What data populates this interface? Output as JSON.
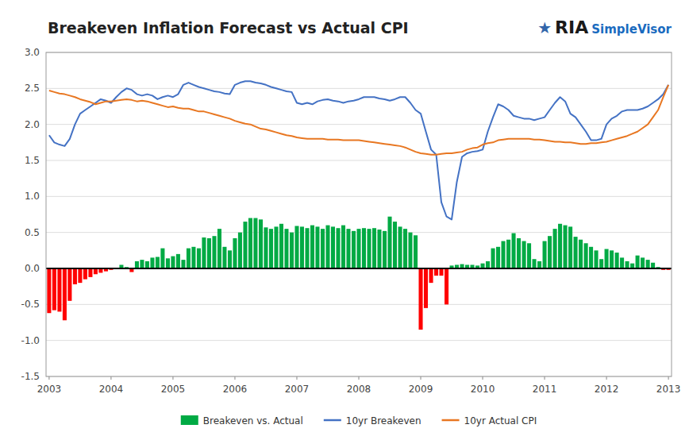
{
  "chart_data": {
    "type": "bar",
    "title": "Breakeven Inflation Forecast vs Actual CPI",
    "annotations": [
      {
        "text": "★",
        "color": "#3366aa"
      },
      {
        "text": "RIA",
        "color": "#1a1a1a"
      },
      {
        "text": "SimpleVisor",
        "color": "#1a6bbf"
      }
    ],
    "x": [
      2003.0,
      2003.083,
      2003.167,
      2003.25,
      2003.333,
      2003.417,
      2003.5,
      2003.583,
      2003.667,
      2003.75,
      2003.833,
      2003.917,
      2004.0,
      2004.083,
      2004.167,
      2004.25,
      2004.333,
      2004.417,
      2004.5,
      2004.583,
      2004.667,
      2004.75,
      2004.833,
      2004.917,
      2005.0,
      2005.083,
      2005.167,
      2005.25,
      2005.333,
      2005.417,
      2005.5,
      2005.583,
      2005.667,
      2005.75,
      2005.833,
      2005.917,
      2006.0,
      2006.083,
      2006.167,
      2006.25,
      2006.333,
      2006.417,
      2006.5,
      2006.583,
      2006.667,
      2006.75,
      2006.833,
      2006.917,
      2007.0,
      2007.083,
      2007.167,
      2007.25,
      2007.333,
      2007.417,
      2007.5,
      2007.583,
      2007.667,
      2007.75,
      2007.833,
      2007.917,
      2008.0,
      2008.083,
      2008.167,
      2008.25,
      2008.333,
      2008.417,
      2008.5,
      2008.583,
      2008.667,
      2008.75,
      2008.833,
      2008.917,
      2009.0,
      2009.083,
      2009.167,
      2009.25,
      2009.333,
      2009.417,
      2009.5,
      2009.583,
      2009.667,
      2009.75,
      2009.833,
      2009.917,
      2010.0,
      2010.083,
      2010.167,
      2010.25,
      2010.333,
      2010.417,
      2010.5,
      2010.583,
      2010.667,
      2010.75,
      2010.833,
      2010.917,
      2011.0,
      2011.083,
      2011.167,
      2011.25,
      2011.333,
      2011.417,
      2011.5,
      2011.583,
      2011.667,
      2011.75,
      2011.833,
      2011.917,
      2012.0,
      2012.083,
      2012.167,
      2012.25,
      2012.333,
      2012.417,
      2012.5,
      2012.583,
      2012.667,
      2012.75,
      2012.833,
      2012.917,
      2013.0
    ],
    "series": [
      {
        "name": "Breakeven vs. Actual",
        "type": "bar",
        "color": "#00AA44",
        "colors": [
          "#FF0000",
          "#FF0000",
          "#FF0000",
          "#FF0000",
          "#FF0000",
          "#FF0000",
          "#FF0000",
          "#FF0000",
          "#FF0000",
          "#FF0000",
          "#FF0000",
          "#FF0000",
          "#FF0000",
          "#00AA44",
          "#00AA44",
          "#00AA44",
          "#FF0000",
          "#00AA44",
          "#00AA44",
          "#00AA44",
          "#00AA44",
          "#00AA44",
          "#00AA44",
          "#00AA44",
          "#00AA44",
          "#00AA44",
          "#00AA44",
          "#00AA44",
          "#00AA44",
          "#00AA44",
          "#00AA44",
          "#00AA44",
          "#00AA44",
          "#00AA44",
          "#00AA44",
          "#00AA44",
          "#00AA44",
          "#00AA44",
          "#00AA44",
          "#00AA44",
          "#00AA44",
          "#00AA44",
          "#00AA44",
          "#00AA44",
          "#00AA44",
          "#00AA44",
          "#00AA44",
          "#00AA44",
          "#00AA44",
          "#00AA44",
          "#00AA44",
          "#00AA44",
          "#00AA44",
          "#00AA44",
          "#00AA44",
          "#00AA44",
          "#00AA44",
          "#00AA44",
          "#00AA44",
          "#00AA44",
          "#00AA44",
          "#00AA44",
          "#00AA44",
          "#00AA44",
          "#00AA44",
          "#00AA44",
          "#00AA44",
          "#00AA44",
          "#00AA44",
          "#00AA44",
          "#00AA44",
          "#00AA44",
          "#FF0000",
          "#FF0000",
          "#FF0000",
          "#FF0000",
          "#FF0000",
          "#FF0000",
          "#00AA44",
          "#00AA44",
          "#00AA44",
          "#00AA44",
          "#00AA44",
          "#00AA44",
          "#00AA44",
          "#00AA44",
          "#00AA44",
          "#00AA44",
          "#00AA44",
          "#00AA44",
          "#00AA44",
          "#00AA44",
          "#00AA44",
          "#00AA44",
          "#00AA44",
          "#00AA44",
          "#00AA44",
          "#00AA44",
          "#00AA44",
          "#00AA44",
          "#00AA44",
          "#00AA44",
          "#00AA44",
          "#00AA44",
          "#00AA44",
          "#00AA44",
          "#00AA44",
          "#00AA44",
          "#00AA44",
          "#00AA44",
          "#00AA44",
          "#00AA44",
          "#00AA44",
          "#00AA44",
          "#00AA44",
          "#00AA44",
          "#00AA44",
          "#00AA44",
          "#00AA44",
          "#FF0000",
          "#FF0000"
        ],
        "values": [
          -0.62,
          -0.58,
          -0.6,
          -0.72,
          -0.45,
          -0.22,
          -0.2,
          -0.15,
          -0.12,
          -0.08,
          -0.06,
          -0.04,
          -0.02,
          0.0,
          0.05,
          0.02,
          -0.05,
          0.1,
          0.12,
          0.1,
          0.15,
          0.16,
          0.28,
          0.14,
          0.17,
          0.2,
          0.12,
          0.28,
          0.3,
          0.28,
          0.43,
          0.42,
          0.45,
          0.55,
          0.3,
          0.25,
          0.42,
          0.5,
          0.65,
          0.7,
          0.7,
          0.68,
          0.57,
          0.55,
          0.58,
          0.62,
          0.55,
          0.5,
          0.59,
          0.58,
          0.56,
          0.6,
          0.58,
          0.55,
          0.6,
          0.58,
          0.56,
          0.6,
          0.55,
          0.52,
          0.55,
          0.56,
          0.55,
          0.56,
          0.54,
          0.52,
          0.72,
          0.65,
          0.58,
          0.55,
          0.5,
          0.46,
          -0.85,
          -0.55,
          -0.2,
          -0.1,
          -0.1,
          -0.5,
          0.04,
          0.05,
          0.06,
          0.05,
          0.05,
          0.04,
          0.07,
          0.1,
          0.28,
          0.3,
          0.38,
          0.4,
          0.49,
          0.42,
          0.38,
          0.35,
          0.13,
          0.1,
          0.38,
          0.45,
          0.55,
          0.62,
          0.6,
          0.58,
          0.44,
          0.4,
          0.35,
          0.3,
          0.25,
          0.13,
          0.27,
          0.25,
          0.22,
          0.15,
          0.1,
          0.07,
          0.18,
          0.15,
          0.12,
          0.08,
          0.02,
          -0.02,
          -0.02
        ]
      },
      {
        "name": "10yr Breakeven",
        "type": "line",
        "color": "#4472C4",
        "values": [
          1.85,
          1.75,
          1.72,
          1.7,
          1.8,
          2.0,
          2.15,
          2.2,
          2.25,
          2.3,
          2.35,
          2.33,
          2.3,
          2.38,
          2.45,
          2.5,
          2.48,
          2.42,
          2.4,
          2.42,
          2.4,
          2.35,
          2.38,
          2.4,
          2.38,
          2.42,
          2.55,
          2.58,
          2.55,
          2.52,
          2.5,
          2.48,
          2.46,
          2.45,
          2.43,
          2.42,
          2.55,
          2.58,
          2.6,
          2.6,
          2.58,
          2.57,
          2.55,
          2.52,
          2.5,
          2.48,
          2.46,
          2.45,
          2.3,
          2.28,
          2.3,
          2.28,
          2.32,
          2.34,
          2.35,
          2.33,
          2.32,
          2.3,
          2.32,
          2.33,
          2.35,
          2.38,
          2.38,
          2.38,
          2.36,
          2.35,
          2.33,
          2.35,
          2.38,
          2.38,
          2.3,
          2.2,
          2.15,
          1.9,
          1.65,
          1.58,
          0.92,
          0.72,
          0.68,
          1.2,
          1.55,
          1.6,
          1.62,
          1.63,
          1.65,
          1.9,
          2.1,
          2.28,
          2.25,
          2.2,
          2.12,
          2.1,
          2.08,
          2.08,
          2.06,
          2.08,
          2.1,
          2.2,
          2.3,
          2.38,
          2.32,
          2.15,
          2.1,
          2.0,
          1.9,
          1.78,
          1.78,
          1.8,
          2.0,
          2.08,
          2.12,
          2.18,
          2.2,
          2.2,
          2.2,
          2.22,
          2.25,
          2.3,
          2.35,
          2.42,
          2.55
        ]
      },
      {
        "name": "10yr Actual CPI",
        "type": "line",
        "color": "#E87722",
        "values": [
          2.47,
          2.45,
          2.43,
          2.42,
          2.4,
          2.38,
          2.35,
          2.33,
          2.31,
          2.28,
          2.3,
          2.32,
          2.32,
          2.33,
          2.34,
          2.35,
          2.34,
          2.32,
          2.33,
          2.32,
          2.3,
          2.28,
          2.26,
          2.24,
          2.25,
          2.23,
          2.22,
          2.22,
          2.2,
          2.18,
          2.18,
          2.16,
          2.14,
          2.12,
          2.1,
          2.08,
          2.05,
          2.03,
          2.01,
          2.0,
          1.97,
          1.94,
          1.93,
          1.91,
          1.89,
          1.87,
          1.85,
          1.84,
          1.82,
          1.81,
          1.8,
          1.8,
          1.8,
          1.8,
          1.79,
          1.79,
          1.79,
          1.78,
          1.78,
          1.78,
          1.78,
          1.77,
          1.76,
          1.75,
          1.74,
          1.73,
          1.72,
          1.71,
          1.7,
          1.68,
          1.65,
          1.62,
          1.6,
          1.59,
          1.58,
          1.58,
          1.59,
          1.6,
          1.6,
          1.61,
          1.62,
          1.65,
          1.67,
          1.68,
          1.72,
          1.74,
          1.75,
          1.78,
          1.79,
          1.8,
          1.8,
          1.8,
          1.8,
          1.8,
          1.79,
          1.79,
          1.78,
          1.77,
          1.76,
          1.76,
          1.75,
          1.75,
          1.74,
          1.73,
          1.73,
          1.74,
          1.74,
          1.75,
          1.76,
          1.78,
          1.8,
          1.82,
          1.84,
          1.87,
          1.9,
          1.95,
          2.0,
          2.1,
          2.2,
          2.38,
          2.55
        ]
      }
    ],
    "xlim": [
      2002.95,
      2013.05
    ],
    "xticks": [
      2003,
      2004,
      2005,
      2006,
      2007,
      2008,
      2009,
      2010,
      2011,
      2012,
      2013
    ],
    "ylim": [
      -1.5,
      3.0
    ],
    "yticks": [
      -1.5,
      {
        "value": -1.0,
        "label": "-1.0"
      },
      -0.5,
      {
        "value": 0.0,
        "label": "0.0"
      },
      0.5,
      {
        "value": 1.0,
        "label": "1.0"
      },
      1.5,
      {
        "value": 2.0,
        "label": "2.0"
      },
      2.5,
      {
        "value": 3.0,
        "label": "3.0"
      }
    ],
    "grid": true,
    "legend": "bottom"
  }
}
